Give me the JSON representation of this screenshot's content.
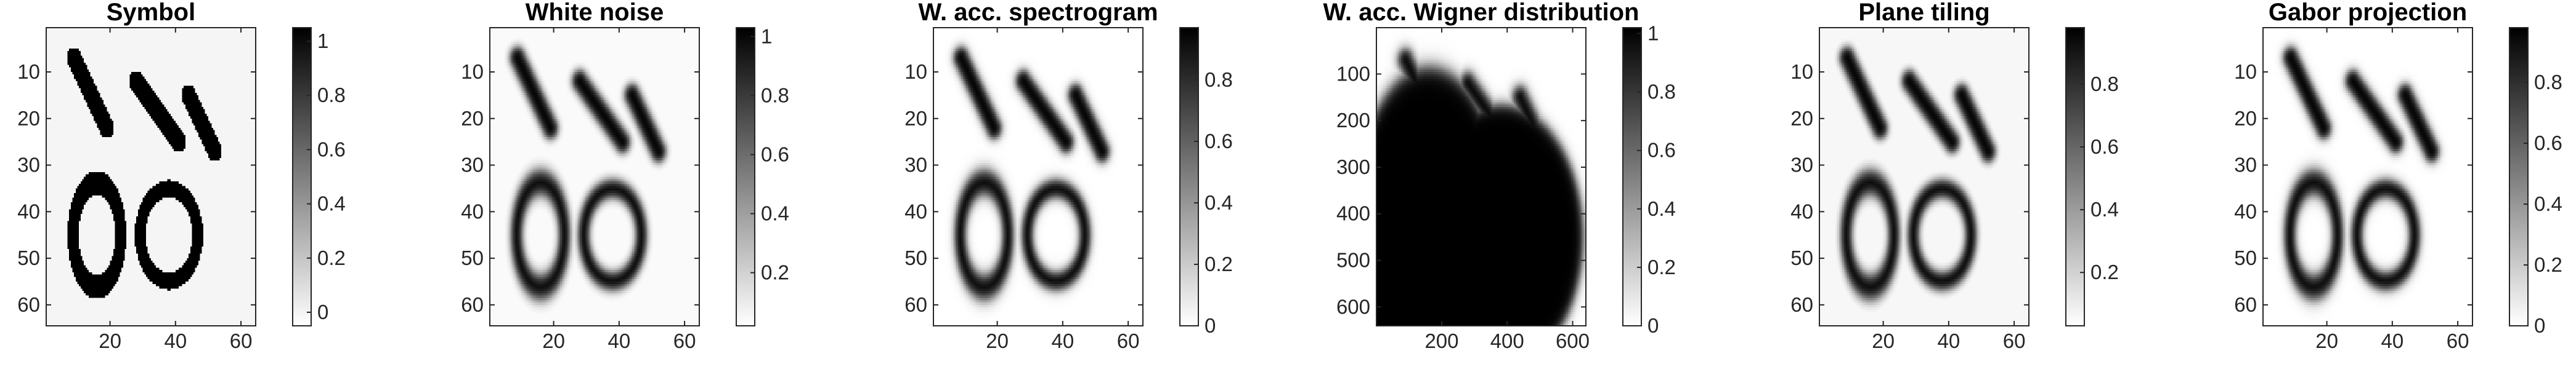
{
  "figure": {
    "background": "#ffffff",
    "colormap": "gray (white = low, black = high)"
  },
  "chart_data": [
    {
      "type": "heatmap",
      "title": "Symbol",
      "xlim": [
        0.5,
        64.5
      ],
      "ylim": [
        0.5,
        64.5
      ],
      "x_ticks": [
        20,
        40,
        60
      ],
      "y_ticks": [
        10,
        20,
        30,
        40,
        50,
        60
      ],
      "colorbar": {
        "min": -0.05,
        "max": 1.05,
        "ticks": [
          0,
          0.2,
          0.4,
          0.6,
          0.8,
          1
        ],
        "tick_labels": [
          "0",
          "0.2",
          "0.4",
          "0.6",
          "0.8",
          "1"
        ]
      },
      "image": {
        "background_value": 0.04,
        "blur": 0,
        "strokes": [
          {
            "x1": 9,
            "y1": 7,
            "x2": 19,
            "y2": 22,
            "half_width": 2.2
          },
          {
            "x1": 28,
            "y1": 12,
            "x2": 41,
            "y2": 25,
            "half_width": 2.2
          },
          {
            "x1": 44,
            "y1": 15,
            "x2": 52,
            "y2": 27,
            "half_width": 2.2
          }
        ],
        "rings": [
          {
            "cx": 16,
            "cy": 45,
            "rx": 7.3,
            "ry": 11.2,
            "thickness": 3.3
          },
          {
            "cx": 38,
            "cy": 45,
            "rx": 8.8,
            "ry": 9.9,
            "thickness": 3.3
          }
        ]
      }
    },
    {
      "type": "heatmap",
      "title": "White noise",
      "xlim": [
        0.5,
        64.5
      ],
      "ylim": [
        0.5,
        64.5
      ],
      "x_ticks": [
        20,
        40,
        60
      ],
      "y_ticks": [
        10,
        20,
        30,
        40,
        50,
        60
      ],
      "colorbar": {
        "min": 0.02,
        "max": 1.03,
        "ticks": [
          0.2,
          0.4,
          0.6,
          0.8,
          1
        ],
        "tick_labels": [
          "0.2",
          "0.4",
          "0.6",
          "0.8",
          "1"
        ]
      },
      "image": {
        "background_value": 0.02,
        "blur": 1.3,
        "strokes": [
          {
            "x1": 9,
            "y1": 7,
            "x2": 19,
            "y2": 22,
            "half_width": 2.2
          },
          {
            "x1": 28,
            "y1": 12,
            "x2": 41,
            "y2": 25,
            "half_width": 2.2
          },
          {
            "x1": 44,
            "y1": 15,
            "x2": 52,
            "y2": 27,
            "half_width": 2.2
          }
        ],
        "rings": [
          {
            "cx": 16,
            "cy": 45,
            "rx": 7.3,
            "ry": 11.2,
            "thickness": 3.3
          },
          {
            "cx": 38,
            "cy": 45,
            "rx": 8.8,
            "ry": 9.9,
            "thickness": 3.3
          }
        ]
      }
    },
    {
      "type": "heatmap",
      "title": "W. acc. spectrogram",
      "xlim": [
        0.5,
        64.5
      ],
      "ylim": [
        0.5,
        64.5
      ],
      "x_ticks": [
        20,
        40,
        60
      ],
      "y_ticks": [
        10,
        20,
        30,
        40,
        50,
        60
      ],
      "colorbar": {
        "min": 0,
        "max": 0.97,
        "ticks": [
          0,
          0.2,
          0.4,
          0.6,
          0.8
        ],
        "tick_labels": [
          "0",
          "0.2",
          "0.4",
          "0.6",
          "0.8"
        ]
      },
      "image": {
        "background_value": 0.0,
        "blur": 1.3,
        "strokes": [
          {
            "x1": 9,
            "y1": 7,
            "x2": 19,
            "y2": 22,
            "half_width": 2.2
          },
          {
            "x1": 28,
            "y1": 12,
            "x2": 41,
            "y2": 25,
            "half_width": 2.2
          },
          {
            "x1": 44,
            "y1": 15,
            "x2": 52,
            "y2": 27,
            "half_width": 2.2
          }
        ],
        "rings": [
          {
            "cx": 16,
            "cy": 45,
            "rx": 7.3,
            "ry": 11.2,
            "thickness": 3.3
          },
          {
            "cx": 38,
            "cy": 45,
            "rx": 8.8,
            "ry": 9.9,
            "thickness": 3.3
          }
        ]
      }
    },
    {
      "type": "heatmap",
      "title": "W. acc. Wigner distribution",
      "xlim": [
        0.5,
        640.5
      ],
      "ylim": [
        0.5,
        640.5
      ],
      "x_ticks": [
        200,
        400,
        600
      ],
      "y_ticks": [
        100,
        200,
        300,
        400,
        500,
        600
      ],
      "colorbar": {
        "min": 0,
        "max": 1.02,
        "ticks": [
          0,
          0.2,
          0.4,
          0.6,
          0.8,
          1
        ],
        "tick_labels": [
          "0",
          "0.2",
          "0.4",
          "0.6",
          "0.8",
          "1"
        ]
      },
      "image": {
        "background_value": 0.0,
        "blur": 1.6,
        "strokes": [
          {
            "x1": 90,
            "y1": 70,
            "x2": 190,
            "y2": 220,
            "half_width": 22
          },
          {
            "x1": 280,
            "y1": 120,
            "x2": 410,
            "y2": 250,
            "half_width": 22
          },
          {
            "x1": 440,
            "y1": 150,
            "x2": 520,
            "y2": 270,
            "half_width": 22
          }
        ],
        "rings": [
          {
            "cx": 160,
            "cy": 450,
            "rx": 73,
            "ry": 112,
            "thickness": 33
          },
          {
            "cx": 380,
            "cy": 450,
            "rx": 88,
            "ry": 99,
            "thickness": 33
          }
        ]
      }
    },
    {
      "type": "heatmap",
      "title": "Plane tiling",
      "xlim": [
        0.5,
        64.5
      ],
      "ylim": [
        0.5,
        64.5
      ],
      "x_ticks": [
        20,
        40,
        60
      ],
      "y_ticks": [
        10,
        20,
        30,
        40,
        50,
        60
      ],
      "colorbar": {
        "min": 0.03,
        "max": 0.98,
        "ticks": [
          0.2,
          0.4,
          0.6,
          0.8
        ],
        "tick_labels": [
          "0.2",
          "0.4",
          "0.6",
          "0.8"
        ]
      },
      "image": {
        "background_value": 0.03,
        "blur": 1.3,
        "strokes": [
          {
            "x1": 9,
            "y1": 7,
            "x2": 19,
            "y2": 22,
            "half_width": 2.2
          },
          {
            "x1": 28,
            "y1": 12,
            "x2": 41,
            "y2": 25,
            "half_width": 2.2
          },
          {
            "x1": 44,
            "y1": 15,
            "x2": 52,
            "y2": 27,
            "half_width": 2.2
          }
        ],
        "rings": [
          {
            "cx": 16,
            "cy": 45,
            "rx": 7.3,
            "ry": 11.2,
            "thickness": 3.3
          },
          {
            "cx": 38,
            "cy": 45,
            "rx": 8.8,
            "ry": 9.9,
            "thickness": 3.3
          }
        ]
      }
    },
    {
      "type": "heatmap",
      "title": "Gabor projection",
      "xlim": [
        0.5,
        64.5
      ],
      "ylim": [
        0.5,
        64.5
      ],
      "x_ticks": [
        20,
        40,
        60
      ],
      "y_ticks": [
        10,
        20,
        30,
        40,
        50,
        60
      ],
      "colorbar": {
        "min": 0,
        "max": 0.98,
        "ticks": [
          0,
          0.2,
          0.4,
          0.6,
          0.8
        ],
        "tick_labels": [
          "0",
          "0.2",
          "0.4",
          "0.6",
          "0.8"
        ]
      },
      "image": {
        "background_value": 0.0,
        "blur": 1.3,
        "strokes": [
          {
            "x1": 9,
            "y1": 7,
            "x2": 19,
            "y2": 22,
            "half_width": 2.2
          },
          {
            "x1": 28,
            "y1": 12,
            "x2": 41,
            "y2": 25,
            "half_width": 2.2
          },
          {
            "x1": 44,
            "y1": 15,
            "x2": 52,
            "y2": 27,
            "half_width": 2.2
          }
        ],
        "rings": [
          {
            "cx": 16,
            "cy": 45,
            "rx": 7.3,
            "ry": 11.2,
            "thickness": 3.3
          },
          {
            "cx": 38,
            "cy": 45,
            "rx": 8.8,
            "ry": 9.9,
            "thickness": 3.3
          }
        ]
      }
    }
  ]
}
